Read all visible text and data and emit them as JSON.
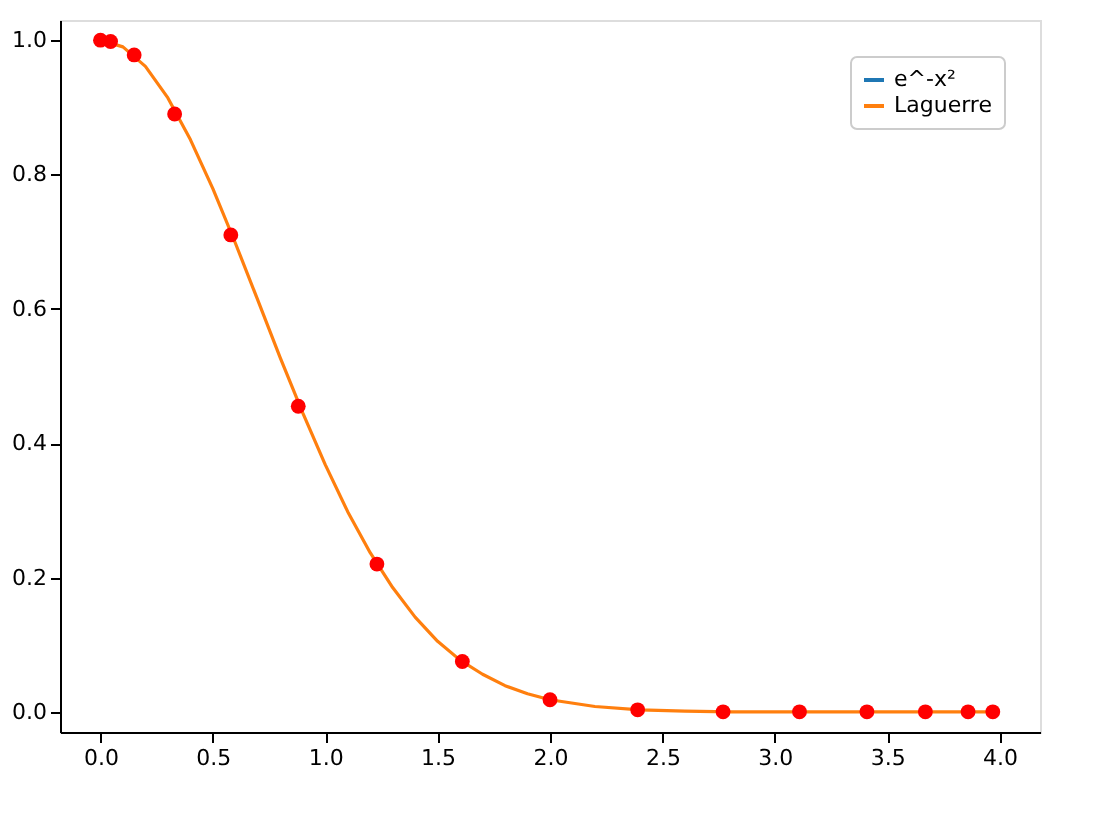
{
  "chart_data": {
    "type": "line",
    "xlim": [
      -0.18,
      4.18
    ],
    "ylim": [
      -0.03,
      1.03
    ],
    "xticks": [
      {
        "value": 0,
        "label": "0.0"
      },
      {
        "value": 0.5,
        "label": "0.5"
      },
      {
        "value": 1,
        "label": "1.0"
      },
      {
        "value": 1.5,
        "label": "1.5"
      },
      {
        "value": 2,
        "label": "2.0"
      },
      {
        "value": 2.5,
        "label": "2.5"
      },
      {
        "value": 3,
        "label": "3.0"
      },
      {
        "value": 3.5,
        "label": "3.5"
      },
      {
        "value": 4,
        "label": "4.0"
      }
    ],
    "yticks": [
      {
        "value": 0,
        "label": "0.0"
      },
      {
        "value": 0.2,
        "label": "0.2"
      },
      {
        "value": 0.4,
        "label": "0.4"
      },
      {
        "value": 0.6,
        "label": "0.6"
      },
      {
        "value": 0.8,
        "label": "0.8"
      },
      {
        "value": 1,
        "label": "1.0"
      }
    ],
    "grid": false,
    "legend": "top right",
    "series": [
      {
        "name": "e^-x²",
        "color": "#1f77b4"
      },
      {
        "name": "Laguerre",
        "color": "#ff7f0e",
        "x": [
          0,
          0.1,
          0.2,
          0.3,
          0.4,
          0.5,
          0.6,
          0.7,
          0.8,
          0.9,
          1.0,
          1.1,
          1.2,
          1.3,
          1.4,
          1.5,
          1.6,
          1.7,
          1.8,
          1.9,
          2.0,
          2.2,
          2.4,
          2.6,
          2.8,
          3.0,
          3.5,
          4.0
        ],
        "values": [
          1,
          0.99,
          0.961,
          0.914,
          0.852,
          0.779,
          0.698,
          0.613,
          0.527,
          0.445,
          0.368,
          0.298,
          0.237,
          0.185,
          0.141,
          0.105,
          0.077,
          0.056,
          0.039,
          0.027,
          0.018,
          0.008,
          0.003,
          0.001,
          0,
          0,
          0,
          0
        ]
      },
      {
        "color": "#ff0000",
        "type": "scatter",
        "marker": "circle",
        "x": [
          0,
          0.045,
          0.15,
          0.33,
          0.58,
          0.88,
          1.23,
          1.61,
          2.0,
          2.39,
          2.77,
          3.11,
          3.41,
          3.67,
          3.86,
          3.97
        ],
        "values": [
          1,
          0.998,
          0.978,
          0.89,
          0.71,
          0.455,
          0.22,
          0.075,
          0.018,
          0.003,
          0,
          0,
          0,
          0,
          0,
          0
        ]
      }
    ]
  }
}
